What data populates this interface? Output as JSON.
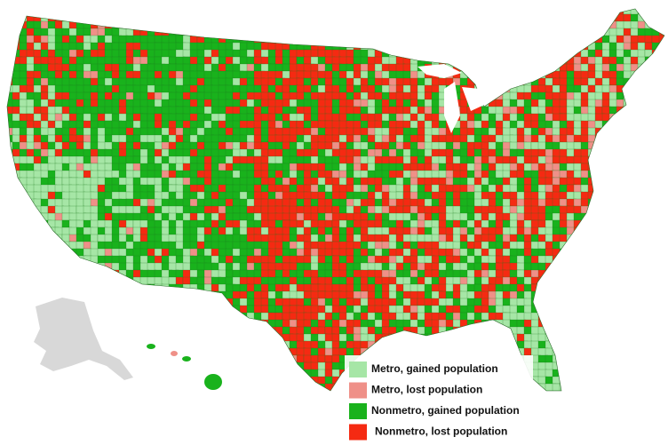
{
  "legend": [
    {
      "label": "Metro, gained population",
      "color": "#a6e6a6"
    },
    {
      "label": "Metro, lost population",
      "color": "#ef9088"
    },
    {
      "label": "Nonmetro, gained population",
      "color": "#19b21c"
    },
    {
      "label": "Nonmetro, lost population",
      "color": "#f52a12"
    }
  ]
}
